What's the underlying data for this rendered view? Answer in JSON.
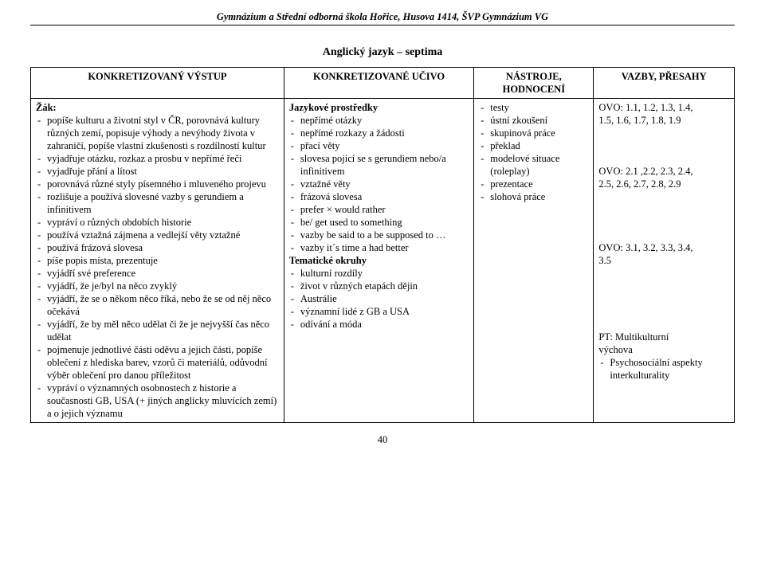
{
  "header": "Gymnázium a Střední odborná škola Hořice, Husova 1414, ŠVP Gymnázium VG",
  "title": "Anglický jazyk – septima",
  "columns": {
    "c1": "KONKRETIZOVANÝ VÝSTUP",
    "c2": "KONKRETIZOVANÉ UČIVO",
    "c3_l1": "NÁSTROJE,",
    "c3_l2": "HODNOCENÍ",
    "c4": "VAZBY, PŘESAHY"
  },
  "col1": {
    "lead": "Žák:",
    "items": [
      "popíše kulturu a životní styl v ČR, porovnává kultury různých zemí, popisuje výhody a nevýhody života v zahraničí, popíše vlastní zkušenosti s rozdílností kultur",
      "vyjadřuje otázku, rozkaz a prosbu v nepřímé řeči",
      "vyjadřuje přání a lítost",
      "porovnává různé styly písemného i mluveného projevu",
      "rozlišuje a používá slovesné vazby s gerundiem a infinitivem",
      "vypráví o různých obdobích historie",
      "používá vztažná zájmena a vedlejší věty vztažné",
      "používá frázová slovesa",
      "píše popis místa, prezentuje",
      "vyjádří své preference",
      "vyjádří, že je/byl na něco zvyklý",
      "vyjádří, že se o někom něco říká, nebo že se od něj něco očekává",
      "vyjádří, že by měl něco udělat či že je nejvyšší čas něco udělat",
      "pojmenuje jednotlivé části oděvu a jejich části, popíše oblečení z hlediska barev, vzorů či materiálů, odůvodní výběr oblečení pro danou příležitost",
      "vypráví o významných osobnostech z historie a současnosti GB, USA (+ jiných anglicky mluvících zemí) a o jejich významu"
    ]
  },
  "col2": {
    "h1": "Jazykové prostředky",
    "g1": [
      "nepřímé otázky",
      "nepřímé rozkazy a žádosti",
      "přací věty",
      "slovesa pojící se s gerundiem nebo/a infinitivem",
      "vztažné věty",
      "frázová slovesa",
      "prefer × would rather",
      "be/ get used to something",
      "vazby be said to a be supposed to …",
      "vazby it´s time a had better"
    ],
    "h2": "Tematické okruhy",
    "g2": [
      "kulturní rozdíly",
      "život v různých etapách dějin",
      "Austrálie",
      "významní lidé z GB a USA",
      "odívání a móda"
    ]
  },
  "col3": {
    "items": [
      "testy",
      "ústní zkoušení",
      "skupinová práce",
      "překlad",
      "modelové situace (roleplay)",
      "prezentace",
      "slohová práce"
    ]
  },
  "col4": {
    "p1a": "OVO: 1.1, 1.2, 1.3, 1.4,",
    "p1b": "1.5, 1.6, 1.7, 1.8, 1.9",
    "p2a": "OVO: 2.1 ,2.2,  2.3, 2.4,",
    "p2b": "2.5, 2.6, 2.7, 2.8, 2.9",
    "p3a": "OVO: 3.1, 3.2, 3.3, 3.4,",
    "p3b": "3.5",
    "p4a": "PT:  Multikulturní",
    "p4b": "výchova",
    "p4c": "Psychosociální aspekty interkulturality"
  },
  "pagenum": "40"
}
